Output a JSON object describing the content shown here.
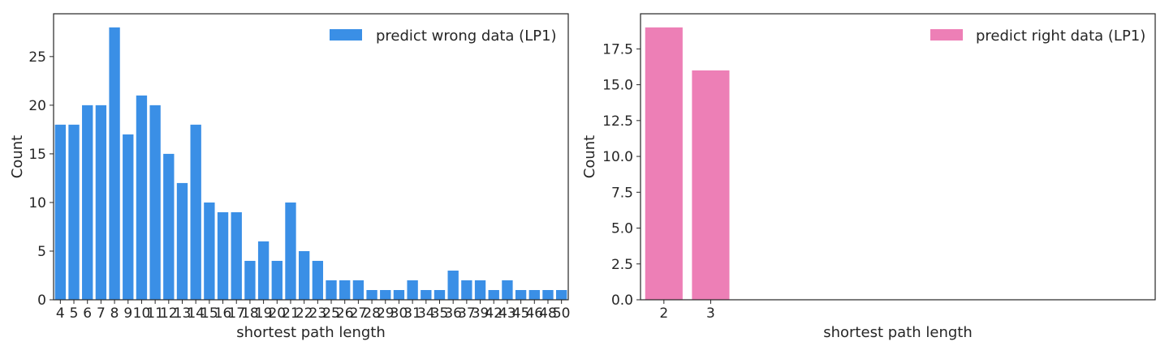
{
  "chart_data": [
    {
      "type": "bar",
      "categories": [
        "4",
        "5",
        "6",
        "7",
        "8",
        "9",
        "10",
        "11",
        "12",
        "13",
        "14",
        "15",
        "16",
        "17",
        "18",
        "19",
        "20",
        "21",
        "22",
        "23",
        "25",
        "26",
        "27",
        "28",
        "29",
        "30",
        "31",
        "34",
        "35",
        "36",
        "37",
        "39",
        "42",
        "43",
        "45",
        "46",
        "48",
        "50"
      ],
      "values": [
        18,
        18,
        20,
        20,
        28,
        17,
        21,
        20,
        15,
        12,
        18,
        10,
        9,
        9,
        4,
        6,
        4,
        10,
        5,
        4,
        2,
        2,
        2,
        1,
        1,
        1,
        2,
        1,
        1,
        3,
        2,
        2,
        1,
        2,
        1,
        1,
        1,
        1
      ],
      "xlabel": "shortest path length",
      "ylabel": "Count",
      "ylim": [
        0,
        29.4
      ],
      "yticks": [
        0,
        5,
        10,
        15,
        20,
        25
      ],
      "series_name": "predict wrong data (LP1)",
      "color": "#3a8fe6",
      "legend_position": "top-right",
      "grid": false
    },
    {
      "type": "bar",
      "categories": [
        "2",
        "3",
        "",
        "",
        "",
        "",
        "",
        "",
        "",
        "",
        ""
      ],
      "values": [
        19,
        16,
        null,
        null,
        null,
        null,
        null,
        null,
        null,
        null,
        null
      ],
      "xlabel": "shortest path length",
      "ylabel": "Count",
      "ylim": [
        0,
        19.95
      ],
      "yticks": [
        0.0,
        2.5,
        5.0,
        7.5,
        10.0,
        12.5,
        15.0,
        17.5
      ],
      "ytick_labels": [
        "0.0",
        "2.5",
        "5.0",
        "7.5",
        "10.0",
        "12.5",
        "15.0",
        "17.5"
      ],
      "series_name": "predict right data (LP1)",
      "color": "#ed7fb6",
      "legend_position": "top-right",
      "grid": false
    }
  ]
}
